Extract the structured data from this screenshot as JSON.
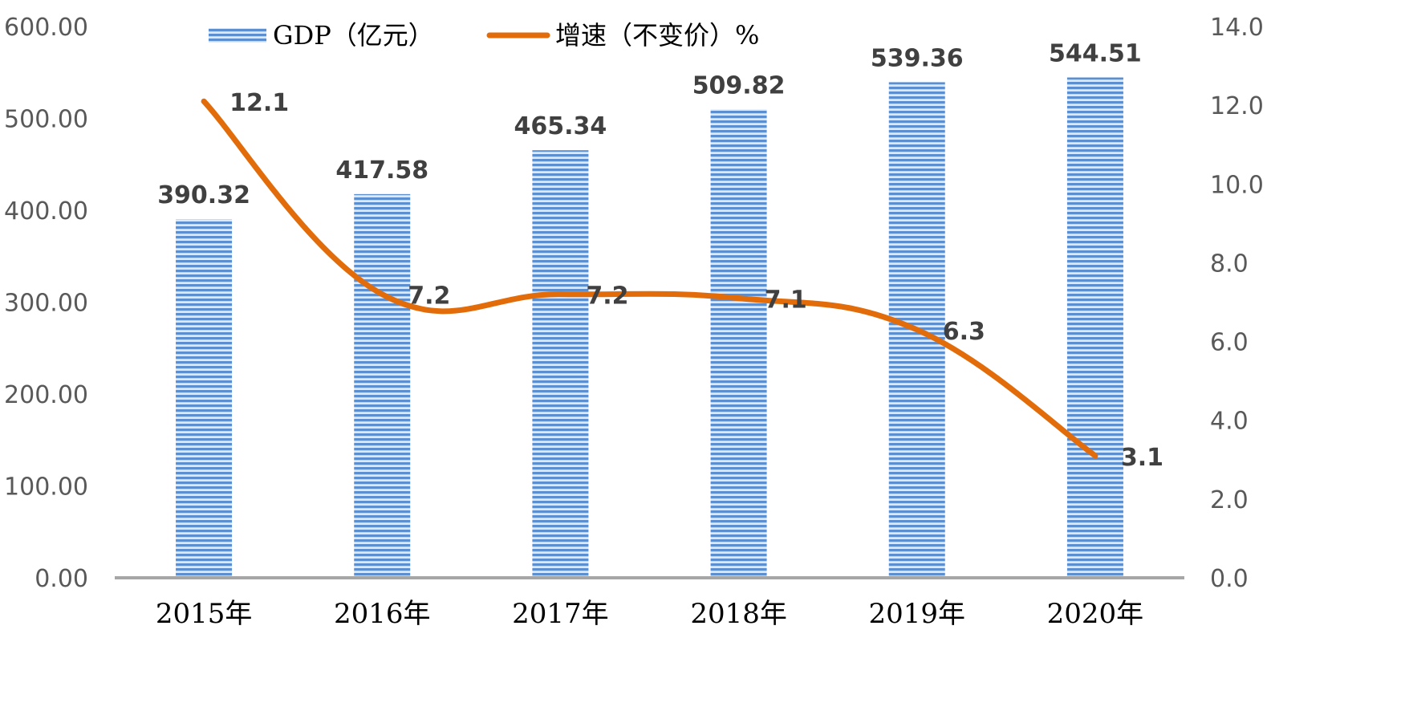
{
  "chart_data": {
    "type": "bar",
    "categories": [
      "2015年",
      "2016年",
      "2017年",
      "2018年",
      "2019年",
      "2020年"
    ],
    "series": [
      {
        "name": "GDP（亿元）",
        "type": "bar",
        "axis": "left",
        "values": [
          390.32,
          417.58,
          465.34,
          509.82,
          539.36,
          544.51
        ],
        "labels": [
          "390.32",
          "417.58",
          "465.34",
          "509.82",
          "539.36",
          "544.51"
        ]
      },
      {
        "name": "增速（不变价）%",
        "type": "line",
        "axis": "right",
        "values": [
          12.1,
          7.2,
          7.2,
          7.1,
          6.3,
          3.1
        ],
        "labels": [
          "12.1",
          "7.2",
          "7.2",
          "7.1",
          "6.3",
          "3.1"
        ]
      }
    ],
    "y_left": {
      "ylim": [
        0,
        600
      ],
      "ticks": [
        "0.00",
        "100.00",
        "200.00",
        "300.00",
        "400.00",
        "500.00",
        "600.00"
      ]
    },
    "y_right": {
      "ylim": [
        0,
        14
      ],
      "ticks": [
        "0.0",
        "2.0",
        "4.0",
        "6.0",
        "8.0",
        "10.0",
        "12.0",
        "14.0"
      ]
    },
    "legend_position": "top",
    "grid": false,
    "colors": {
      "bar": "#5b8fd0",
      "bar_stripe": "#dce8f7",
      "line": "#e36c0a",
      "axis": "#a6a6a6"
    }
  }
}
